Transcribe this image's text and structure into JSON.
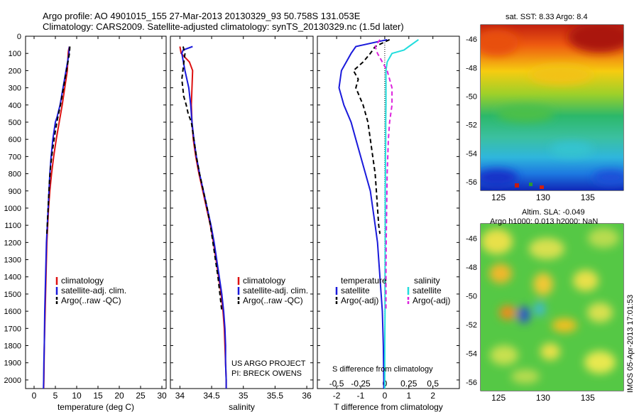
{
  "header": {
    "line1": "Argo profile: AO 4901015_155 27-Mar-2013 20130329_93 50.758S 131.053E",
    "line2": "Climatology: CARS2009. Satellite-adjusted climatology: synTS_20130329.nc (1.5d later)"
  },
  "map_labels": {
    "sst": "sat. SST: 8.33 Argo: 8.4",
    "sla": "Altim. SLA: -0.049",
    "h": "Argo h1000: 0.013 h2000: NaN",
    "imos": "IMOS 05-Apr-2013 17:01:53"
  },
  "notes": {
    "project": "US ARGO PROJECT",
    "pi": "PI: BRECK OWENS",
    "s_diff_label": "S difference from climatology"
  },
  "colors": {
    "climatology": "#dd1111",
    "satellite": "#1a1adb",
    "argo": "#000000",
    "satellite_s": "#22dddd",
    "argo_s": "#dd22dd"
  },
  "chart_data": [
    {
      "type": "line",
      "xlabel": "temperature (deg C)",
      "ylabel": "",
      "xlim": [
        -2,
        31
      ],
      "ylim": [
        2050,
        0
      ],
      "xticks": [
        0,
        5,
        10,
        15,
        20,
        25,
        30
      ],
      "yticks": [
        0,
        100,
        200,
        300,
        400,
        500,
        600,
        700,
        800,
        900,
        1000,
        1100,
        1200,
        1300,
        1400,
        1500,
        1600,
        1700,
        1800,
        1900,
        2000
      ],
      "legend": [
        "climatology",
        "satellite-adj. clim.",
        "Argo(..raw -QC)"
      ],
      "series": [
        {
          "name": "climatology",
          "points": [
            [
              8.3,
              60
            ],
            [
              8.1,
              80
            ],
            [
              8.0,
              100
            ],
            [
              7.8,
              200
            ],
            [
              7.2,
              300
            ],
            [
              6.6,
              400
            ],
            [
              5.9,
              500
            ],
            [
              5.2,
              600
            ],
            [
              4.6,
              700
            ],
            [
              4.1,
              800
            ],
            [
              3.7,
              900
            ],
            [
              3.4,
              1000
            ],
            [
              3.2,
              1100
            ],
            [
              3.0,
              1200
            ],
            [
              2.9,
              1300
            ],
            [
              2.8,
              1400
            ],
            [
              2.7,
              1500
            ],
            [
              2.6,
              1600
            ],
            [
              2.5,
              1700
            ],
            [
              2.4,
              1800
            ],
            [
              2.35,
              1900
            ],
            [
              2.3,
              2000
            ],
            [
              2.25,
              2050
            ]
          ]
        },
        {
          "name": "satellite-adj. clim.",
          "points": [
            [
              8.3,
              60
            ],
            [
              8.2,
              80
            ],
            [
              8.2,
              100
            ],
            [
              7.5,
              200
            ],
            [
              6.8,
              300
            ],
            [
              6.1,
              400
            ],
            [
              5.4,
              470
            ],
            [
              5.0,
              500
            ],
            [
              4.4,
              600
            ],
            [
              4.0,
              700
            ],
            [
              3.7,
              800
            ],
            [
              3.5,
              900
            ],
            [
              3.3,
              1000
            ],
            [
              3.1,
              1100
            ],
            [
              2.9,
              1200
            ],
            [
              2.8,
              1300
            ],
            [
              2.7,
              1400
            ],
            [
              2.6,
              1500
            ],
            [
              2.5,
              1600
            ],
            [
              2.45,
              1700
            ],
            [
              2.4,
              1800
            ],
            [
              2.3,
              1900
            ],
            [
              2.25,
              2000
            ],
            [
              2.2,
              2050
            ]
          ]
        },
        {
          "name": "Argo(..raw -QC)",
          "points": [
            [
              8.4,
              60
            ],
            [
              8.3,
              100
            ],
            [
              7.6,
              200
            ],
            [
              6.9,
              300
            ],
            [
              6.2,
              400
            ],
            [
              5.5,
              480
            ],
            [
              5.0,
              550
            ],
            [
              4.4,
              650
            ],
            [
              3.9,
              750
            ],
            [
              3.6,
              850
            ],
            [
              3.4,
              950
            ],
            [
              3.2,
              1050
            ],
            [
              3.0,
              1150
            ]
          ]
        }
      ]
    },
    {
      "type": "line",
      "xlabel": "salinity",
      "ylabel": "",
      "xlim": [
        33.85,
        36.1
      ],
      "ylim": [
        2050,
        0
      ],
      "xticks": [
        34,
        34.5,
        35,
        35.5,
        36
      ],
      "legend": [
        "climatology",
        "satellite-adj. clim.",
        "Argo(..raw -QC)"
      ],
      "series": [
        {
          "name": "climatology",
          "points": [
            [
              34.0,
              60
            ],
            [
              34.02,
              100
            ],
            [
              34.15,
              150
            ],
            [
              34.2,
              200
            ],
            [
              34.19,
              300
            ],
            [
              34.18,
              400
            ],
            [
              34.19,
              500
            ],
            [
              34.21,
              600
            ],
            [
              34.25,
              700
            ],
            [
              34.3,
              800
            ],
            [
              34.36,
              900
            ],
            [
              34.42,
              1000
            ],
            [
              34.48,
              1100
            ],
            [
              34.53,
              1200
            ],
            [
              34.57,
              1300
            ],
            [
              34.61,
              1400
            ],
            [
              34.65,
              1500
            ],
            [
              34.68,
              1600
            ],
            [
              34.7,
              1700
            ],
            [
              34.71,
              1800
            ],
            [
              34.72,
              1900
            ],
            [
              34.73,
              2000
            ],
            [
              34.73,
              2050
            ]
          ]
        },
        {
          "name": "satellite-adj. clim.",
          "points": [
            [
              34.2,
              60
            ],
            [
              34.05,
              80
            ],
            [
              34.03,
              100
            ],
            [
              34.08,
              200
            ],
            [
              34.14,
              300
            ],
            [
              34.17,
              400
            ],
            [
              34.19,
              500
            ],
            [
              34.22,
              600
            ],
            [
              34.26,
              700
            ],
            [
              34.31,
              800
            ],
            [
              34.37,
              900
            ],
            [
              34.43,
              1000
            ],
            [
              34.49,
              1100
            ],
            [
              34.54,
              1200
            ],
            [
              34.58,
              1300
            ],
            [
              34.62,
              1400
            ],
            [
              34.66,
              1500
            ],
            [
              34.69,
              1600
            ],
            [
              34.71,
              1700
            ],
            [
              34.72,
              1800
            ],
            [
              34.72,
              1900
            ],
            [
              34.73,
              2000
            ],
            [
              34.73,
              2050
            ]
          ]
        },
        {
          "name": "Argo(..raw -QC)",
          "points": [
            [
              34.05,
              60
            ],
            [
              34.08,
              100
            ],
            [
              34.03,
              250
            ],
            [
              34.06,
              350
            ],
            [
              34.1,
              400
            ],
            [
              34.13,
              450
            ],
            [
              34.18,
              500
            ],
            [
              34.22,
              600
            ],
            [
              34.26,
              700
            ],
            [
              34.31,
              800
            ],
            [
              34.37,
              900
            ],
            [
              34.43,
              1000
            ],
            [
              34.48,
              1100
            ],
            [
              34.52,
              1200
            ],
            [
              34.56,
              1300
            ],
            [
              34.6,
              1400
            ],
            [
              34.63,
              1500
            ],
            [
              34.66,
              1600
            ]
          ]
        }
      ]
    },
    {
      "type": "line",
      "xlabel": "T difference from climatology",
      "ylabel": "",
      "xlim": [
        -2.8,
        3.1
      ],
      "ylim": [
        2050,
        0
      ],
      "xticks": [
        -2,
        -1,
        0,
        1,
        2
      ],
      "top_xlabel": "S difference from climatology",
      "top_xticks": [
        "-0.5",
        "-0.25",
        "0",
        "0.25",
        "0.5"
      ],
      "legend": [
        "temperature",
        "satellite",
        "Argo(-adj)",
        "salinity",
        "satellite",
        "Argo(-adj)"
      ],
      "series": [
        {
          "name": "satellite",
          "group": "temperature",
          "points": [
            [
              0.1,
              20
            ],
            [
              -1.2,
              60
            ],
            [
              -1.4,
              100
            ],
            [
              -1.8,
              200
            ],
            [
              -1.9,
              300
            ],
            [
              -1.7,
              400
            ],
            [
              -1.4,
              500
            ],
            [
              -1.2,
              600
            ],
            [
              -1.0,
              700
            ],
            [
              -0.8,
              800
            ],
            [
              -0.6,
              900
            ],
            [
              -0.5,
              1000
            ],
            [
              -0.4,
              1100
            ],
            [
              -0.3,
              1200
            ],
            [
              -0.25,
              1300
            ],
            [
              -0.2,
              1400
            ],
            [
              -0.15,
              1500
            ],
            [
              -0.1,
              1600
            ],
            [
              -0.08,
              1700
            ],
            [
              -0.06,
              1800
            ],
            [
              -0.05,
              1900
            ],
            [
              -0.04,
              2000
            ],
            [
              -0.04,
              2050
            ]
          ]
        },
        {
          "name": "Argo(-adj)",
          "group": "temperature",
          "points": [
            [
              0.2,
              20
            ],
            [
              -0.4,
              60
            ],
            [
              -0.6,
              100
            ],
            [
              -0.9,
              150
            ],
            [
              -1.3,
              200
            ],
            [
              -1.1,
              250
            ],
            [
              -1.2,
              300
            ],
            [
              -0.9,
              400
            ],
            [
              -0.7,
              500
            ],
            [
              -0.6,
              600
            ],
            [
              -0.5,
              700
            ],
            [
              -0.4,
              800
            ],
            [
              -0.35,
              900
            ],
            [
              -0.3,
              1000
            ],
            [
              -0.25,
              1100
            ],
            [
              -0.2,
              1150
            ]
          ]
        },
        {
          "name": "satellite",
          "group": "salinity",
          "points": [
            [
              1.4,
              20
            ],
            [
              1.0,
              60
            ],
            [
              0.8,
              80
            ],
            [
              0.3,
              100
            ],
            [
              0.1,
              150
            ],
            [
              0.05,
              200
            ],
            [
              0.05,
              300
            ],
            [
              0.05,
              400
            ],
            [
              0.04,
              500
            ],
            [
              0.04,
              600
            ],
            [
              0.03,
              700
            ],
            [
              0.03,
              800
            ],
            [
              0.02,
              900
            ],
            [
              0.02,
              1000
            ],
            [
              0.02,
              1200
            ],
            [
              0.01,
              1400
            ],
            [
              0.01,
              1600
            ],
            [
              0.0,
              1800
            ],
            [
              0.0,
              2000
            ],
            [
              0.0,
              2050
            ]
          ]
        },
        {
          "name": "Argo(-adj)",
          "group": "salinity",
          "points": [
            [
              -0.2,
              20
            ],
            [
              -0.4,
              60
            ],
            [
              -0.3,
              100
            ],
            [
              0.1,
              200
            ],
            [
              0.3,
              300
            ],
            [
              0.3,
              400
            ],
            [
              0.2,
              500
            ],
            [
              0.15,
              600
            ],
            [
              0.1,
              800
            ],
            [
              0.08,
              1000
            ],
            [
              0.06,
              1200
            ],
            [
              0.05,
              1400
            ],
            [
              0.05,
              1600
            ]
          ]
        }
      ]
    },
    {
      "type": "heatmap",
      "title": "sat. SST: 8.33 Argo: 8.4",
      "xticks": [
        125,
        130,
        135
      ],
      "yticks": [
        -46,
        -48,
        -50,
        -52,
        -54,
        -56
      ],
      "xlim": [
        123,
        139
      ],
      "ylim": [
        -56.6,
        -45
      ],
      "argo_position": [
        131.05,
        -50.76
      ]
    },
    {
      "type": "heatmap",
      "title": "Altim. SLA: -0.049",
      "subtitle": "Argo h1000: 0.013 h2000: NaN",
      "xticks": [
        125,
        130,
        135
      ],
      "yticks": [
        -46,
        -48,
        -50,
        -52,
        -54,
        -56
      ],
      "xlim": [
        123,
        139
      ],
      "ylim": [
        -56.6,
        -45
      ],
      "argo_position": [
        131.05,
        -50.76
      ]
    }
  ]
}
